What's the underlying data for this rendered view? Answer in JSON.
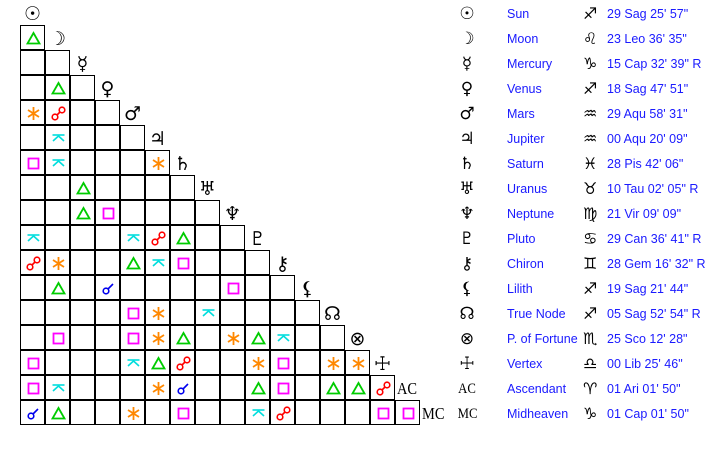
{
  "colors": {
    "trine": "#00cc00",
    "square": "#ff00ff",
    "sextile": "#ff8800",
    "opposition": "#ff0000",
    "quincunx": "#00dddd",
    "conjunction": "#0000ee",
    "text": "#1a1aff"
  },
  "bodies": [
    {
      "name": "Sun",
      "glyph": "☉",
      "sign_glyph": "♐",
      "position": "29 Sag 25' 57\""
    },
    {
      "name": "Moon",
      "glyph": "☽",
      "sign_glyph": "♌",
      "position": "23 Leo 36' 35\""
    },
    {
      "name": "Mercury",
      "glyph": "☿",
      "sign_glyph": "♑",
      "position": "15 Cap 32' 39\" R"
    },
    {
      "name": "Venus",
      "glyph": "♀",
      "sign_glyph": "♐",
      "position": "18 Sag 47' 51\""
    },
    {
      "name": "Mars",
      "glyph": "♂",
      "sign_glyph": "♒",
      "position": "29 Aqu 58' 31\""
    },
    {
      "name": "Jupiter",
      "glyph": "♃",
      "sign_glyph": "♒",
      "position": "00 Aqu 20' 09\""
    },
    {
      "name": "Saturn",
      "glyph": "♄",
      "sign_glyph": "♓",
      "position": "28 Pis 42' 06\""
    },
    {
      "name": "Uranus",
      "glyph": "♅",
      "sign_glyph": "♉",
      "position": "10 Tau 02' 05\" R"
    },
    {
      "name": "Neptune",
      "glyph": "♆",
      "sign_glyph": "♍",
      "position": "21 Vir 09' 09\""
    },
    {
      "name": "Pluto",
      "glyph": "♇",
      "sign_glyph": "♋",
      "position": "29 Can 36' 41\" R"
    },
    {
      "name": "Chiron",
      "glyph": "⚷",
      "sign_glyph": "♊",
      "position": "28 Gem 16' 32\" R"
    },
    {
      "name": "Lilith",
      "glyph": "⚸",
      "sign_glyph": "♐",
      "position": "19 Sag 21' 44\""
    },
    {
      "name": "True Node",
      "glyph": "☊",
      "sign_glyph": "♐",
      "position": "05 Sag 52' 54\" R"
    },
    {
      "name": "P. of Fortune",
      "glyph": "⊗",
      "sign_glyph": "♏",
      "position": "25 Sco 12' 28\""
    },
    {
      "name": "Vertex",
      "glyph": "☩",
      "sign_glyph": "♎",
      "position": "00 Lib 25' 46\""
    },
    {
      "name": "Ascendant",
      "glyph": "AC",
      "sign_glyph": "♈",
      "position": "01 Ari 01' 50\""
    },
    {
      "name": "Midheaven",
      "glyph": "MC",
      "sign_glyph": "♑",
      "position": "01 Cap 01' 50\""
    }
  ],
  "aspects": [
    [
      1,
      0,
      "trine"
    ],
    [
      3,
      1,
      "trine"
    ],
    [
      4,
      0,
      "sextile"
    ],
    [
      4,
      1,
      "opposition"
    ],
    [
      5,
      1,
      "quincunx"
    ],
    [
      6,
      0,
      "square"
    ],
    [
      6,
      1,
      "quincunx"
    ],
    [
      6,
      5,
      "sextile"
    ],
    [
      7,
      2,
      "trine"
    ],
    [
      8,
      2,
      "trine"
    ],
    [
      8,
      3,
      "square"
    ],
    [
      9,
      0,
      "quincunx"
    ],
    [
      9,
      4,
      "quincunx"
    ],
    [
      9,
      5,
      "opposition"
    ],
    [
      9,
      6,
      "trine"
    ],
    [
      10,
      0,
      "opposition"
    ],
    [
      10,
      1,
      "sextile"
    ],
    [
      10,
      4,
      "trine"
    ],
    [
      10,
      5,
      "quincunx"
    ],
    [
      10,
      6,
      "square"
    ],
    [
      11,
      1,
      "trine"
    ],
    [
      11,
      3,
      "conjunction"
    ],
    [
      11,
      8,
      "square"
    ],
    [
      12,
      4,
      "square"
    ],
    [
      12,
      5,
      "sextile"
    ],
    [
      12,
      7,
      "quincunx"
    ],
    [
      13,
      1,
      "square"
    ],
    [
      13,
      4,
      "square"
    ],
    [
      13,
      5,
      "sextile"
    ],
    [
      13,
      6,
      "trine"
    ],
    [
      13,
      8,
      "sextile"
    ],
    [
      13,
      9,
      "trine"
    ],
    [
      13,
      10,
      "quincunx"
    ],
    [
      14,
      0,
      "square"
    ],
    [
      14,
      4,
      "quincunx"
    ],
    [
      14,
      5,
      "trine"
    ],
    [
      14,
      6,
      "opposition"
    ],
    [
      14,
      9,
      "sextile"
    ],
    [
      14,
      10,
      "square"
    ],
    [
      14,
      12,
      "sextile"
    ],
    [
      14,
      13,
      "sextile"
    ],
    [
      15,
      0,
      "square"
    ],
    [
      15,
      1,
      "quincunx"
    ],
    [
      15,
      5,
      "sextile"
    ],
    [
      15,
      6,
      "conjunction"
    ],
    [
      15,
      9,
      "trine"
    ],
    [
      15,
      10,
      "square"
    ],
    [
      15,
      12,
      "trine"
    ],
    [
      15,
      13,
      "trine"
    ],
    [
      15,
      14,
      "opposition"
    ],
    [
      16,
      0,
      "conjunction"
    ],
    [
      16,
      1,
      "trine"
    ],
    [
      16,
      4,
      "sextile"
    ],
    [
      16,
      6,
      "square"
    ],
    [
      16,
      9,
      "quincunx"
    ],
    [
      16,
      10,
      "opposition"
    ],
    [
      16,
      14,
      "square"
    ],
    [
      16,
      15,
      "square"
    ]
  ]
}
